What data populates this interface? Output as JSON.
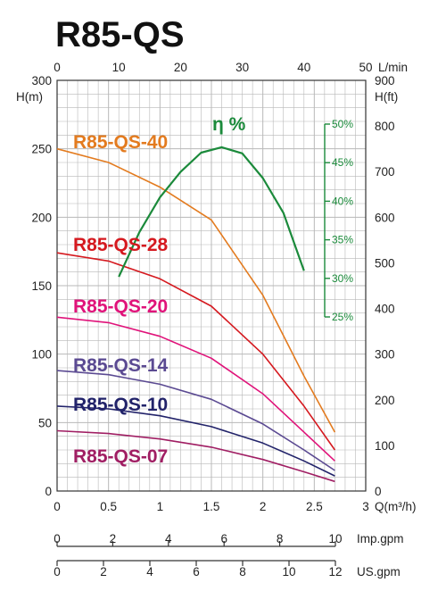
{
  "title": "R85-QS",
  "colors": {
    "grid": "#b8b8b8",
    "axis": "#333333",
    "efficiency": "#1b8a3b",
    "series": [
      "#e37b1f",
      "#d5191f",
      "#e0137a",
      "#5b4a92",
      "#22236a",
      "#a01e63"
    ]
  },
  "chart_data": {
    "type": "line",
    "title": "R85-QS",
    "xlabel": "Q(m³/h)",
    "ylabel": "H(m)",
    "x_range": [
      0,
      3
    ],
    "x_ticks": [
      "0",
      "0.5",
      "1",
      "1.5",
      "2",
      "2.5",
      "3"
    ],
    "y_range": [
      0,
      300
    ],
    "y_ticks": [
      "0",
      "50",
      "100",
      "150",
      "200",
      "250",
      "300"
    ],
    "top_axis": {
      "label": "L/min",
      "range": [
        0,
        50
      ],
      "ticks": [
        "0",
        "10",
        "20",
        "30",
        "40",
        "50"
      ]
    },
    "right_axis": {
      "label": "H(ft)",
      "range": [
        0,
        900
      ],
      "ticks": [
        "0",
        "100",
        "200",
        "300",
        "400",
        "500",
        "600",
        "700",
        "800",
        "900"
      ]
    },
    "efficiency_axis": {
      "label": "η %",
      "ticks": [
        "25%",
        "30%",
        "35%",
        "40%",
        "45%",
        "50%"
      ]
    },
    "imp_gpm_axis": {
      "label": "Imp.gpm",
      "ticks": [
        "0",
        "2",
        "4",
        "6",
        "8",
        "10"
      ]
    },
    "us_gpm_axis": {
      "label": "US.gpm",
      "ticks": [
        "0",
        "2",
        "4",
        "6",
        "8",
        "10",
        "12"
      ]
    },
    "grid": true,
    "series": [
      {
        "name": "R85-QS-40",
        "x": [
          0,
          0.5,
          1.0,
          1.5,
          2.0,
          2.4,
          2.7
        ],
        "y": [
          250,
          240,
          222,
          198,
          143,
          84,
          43
        ]
      },
      {
        "name": "R85-QS-28",
        "x": [
          0,
          0.5,
          1.0,
          1.5,
          2.0,
          2.4,
          2.7
        ],
        "y": [
          174,
          168,
          155,
          135,
          100,
          62,
          30
        ]
      },
      {
        "name": "R85-QS-20",
        "x": [
          0,
          0.5,
          1.0,
          1.5,
          2.0,
          2.4,
          2.7
        ],
        "y": [
          127,
          123,
          113,
          97,
          71,
          43,
          22
        ]
      },
      {
        "name": "R85-QS-14",
        "x": [
          0,
          0.5,
          1.0,
          1.5,
          2.0,
          2.4,
          2.7
        ],
        "y": [
          88,
          85,
          78,
          67,
          49,
          30,
          15
        ]
      },
      {
        "name": "R85-QS-10",
        "x": [
          0,
          0.5,
          1.0,
          1.5,
          2.0,
          2.4,
          2.7
        ],
        "y": [
          62,
          60,
          55,
          47,
          35,
          22,
          11
        ]
      },
      {
        "name": "R85-QS-07",
        "x": [
          0,
          0.5,
          1.0,
          1.5,
          2.0,
          2.4,
          2.7
        ],
        "y": [
          44,
          42,
          38,
          32,
          23,
          14,
          7
        ]
      }
    ],
    "efficiency_curve": {
      "name": "η %",
      "x": [
        0.6,
        0.8,
        1.0,
        1.2,
        1.4,
        1.6,
        1.8,
        2.0,
        2.2,
        2.4
      ],
      "eff": [
        30.2,
        36.0,
        40.5,
        43.8,
        46.3,
        47.0,
        46.2,
        43.0,
        38.5,
        31.0
      ]
    }
  }
}
